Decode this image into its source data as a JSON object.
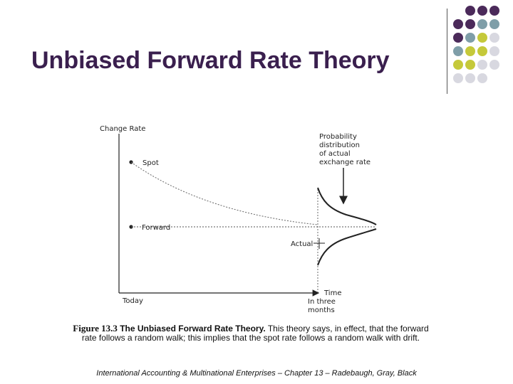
{
  "slide": {
    "title": "Unbiased Forward Rate Theory",
    "footer": "International Accounting & Multinational Enterprises – Chapter 13 – Radebaugh, Gray, Black"
  },
  "decoration": {
    "dot_colors": [
      "#4b2a5a",
      "#7f9ea8",
      "#c5c93a",
      "#d8d8e0"
    ]
  },
  "diagram": {
    "y_axis_label": "Change Rate",
    "x_axis_label": "Time",
    "x_start_label": "Today",
    "x_end_label_lines": [
      "In three",
      "months"
    ],
    "spot_label": "Spot",
    "forward_label": "Forward",
    "actual_label": "Actual",
    "distribution_label_lines": [
      "Probability",
      "distribution",
      "of actual",
      "exchange rate"
    ]
  },
  "caption": {
    "figure": "Figure 13.3",
    "title": "The Unbiased Forward Rate Theory.",
    "text": "This theory says, in effect, that the forward rate follows a random walk; this implies that the spot rate follows a random walk with drift."
  }
}
